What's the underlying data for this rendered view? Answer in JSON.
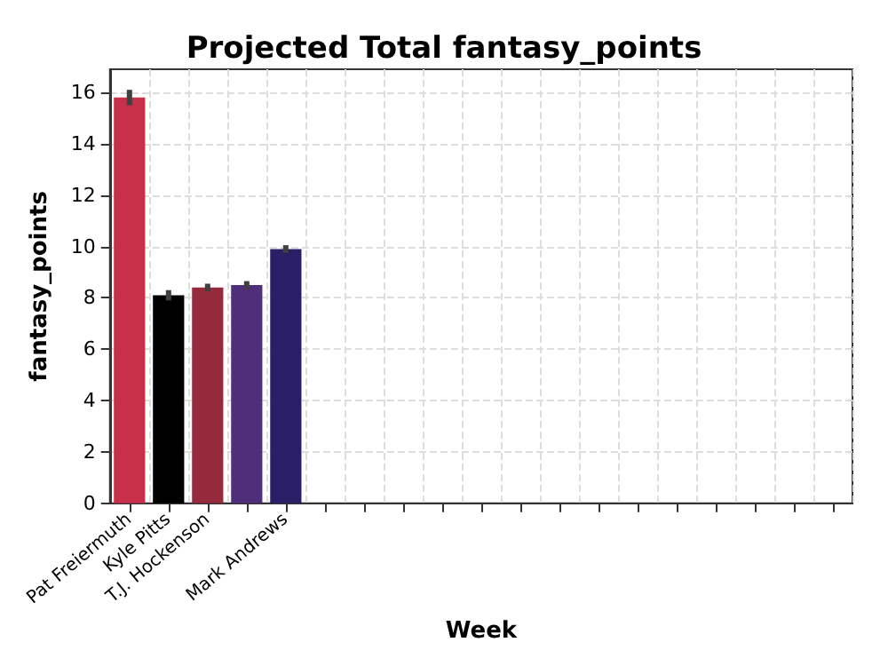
{
  "chart_data": {
    "type": "bar",
    "title": "Projected Total fantasy_points",
    "xlabel": "Week",
    "ylabel": "fantasy_points",
    "categories": [
      "Pat Freiermuth",
      "Kyle Pitts",
      "T.J. Hockenson",
      null,
      "Mark Andrews",
      null,
      null,
      null,
      null,
      null,
      null,
      null,
      null,
      null,
      null,
      null,
      null,
      null,
      null
    ],
    "values": [
      15.8,
      8.1,
      8.4,
      8.5,
      9.9,
      null,
      null,
      null,
      null,
      null,
      null,
      null,
      null,
      null,
      null,
      null,
      null,
      null,
      null
    ],
    "colors": [
      "#c8304a",
      "#000000",
      "#952a3c",
      "#4f2e7a",
      "#2a1f66",
      null,
      null,
      null,
      null,
      null,
      null,
      null,
      null,
      null,
      null,
      null,
      null,
      null,
      null
    ],
    "errors": [
      0.3,
      0.2,
      0.15,
      0.15,
      0.15,
      null,
      null,
      null,
      null,
      null,
      null,
      null,
      null,
      null,
      null,
      null,
      null,
      null,
      null
    ],
    "ylim": [
      0,
      16.9
    ],
    "yticks": [
      0,
      2,
      4,
      6,
      8,
      10,
      12,
      14,
      16
    ],
    "grid": true
  }
}
